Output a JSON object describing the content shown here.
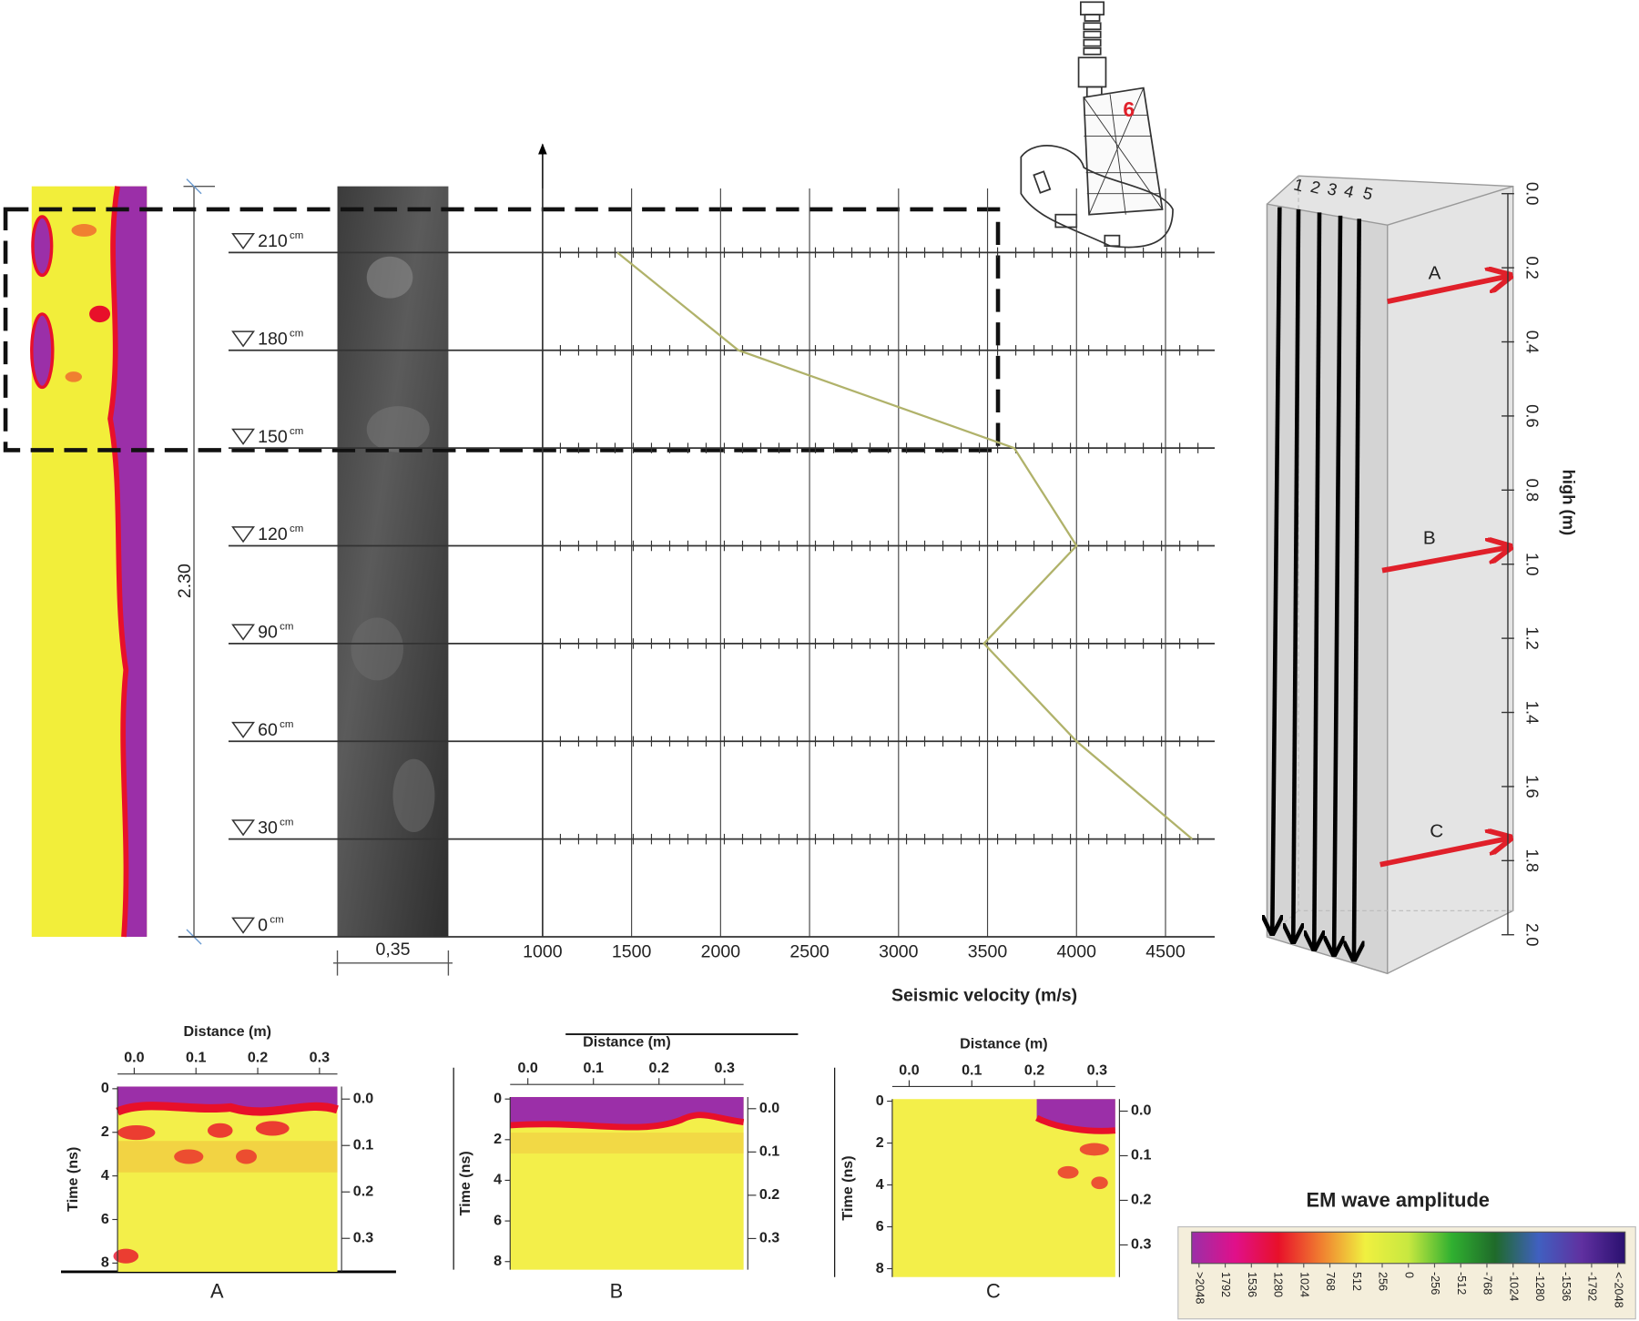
{
  "chart_data": {
    "type": "line",
    "x_label": "Seismic velocity (m/s)",
    "xlim": [
      1000,
      4800
    ],
    "xticks": [
      1000,
      1500,
      2000,
      2500,
      3000,
      3500,
      4000,
      4500
    ],
    "ylim": [
      0,
      230
    ],
    "yticks": [
      0,
      30,
      60,
      90,
      120,
      150,
      180,
      210
    ],
    "y_unit": "cm",
    "y": [
      210,
      180,
      150,
      120,
      90,
      60,
      30
    ],
    "values": [
      1420,
      2100,
      3650,
      4000,
      3480,
      4000,
      4650
    ],
    "color": "#b0b26a"
  },
  "dimensions": {
    "height": "2.30",
    "width": "0,35"
  },
  "top_diagram": {
    "label": "6"
  },
  "box_panel": {
    "line_labels": [
      "1",
      "2",
      "3",
      "4",
      "5"
    ],
    "arrow_labels": [
      "A",
      "B",
      "C"
    ],
    "axis_label": "high (m)",
    "ylim": [
      0,
      2
    ],
    "yticks": [
      {
        "value": 0,
        "label": "0.0"
      },
      0.2,
      0.4,
      0.6,
      0.8,
      {
        "value": 1,
        "label": "1.0"
      },
      1.2,
      1.4,
      1.6,
      1.8,
      {
        "value": 2,
        "label": "2.0"
      }
    ]
  },
  "radargrams": [
    {
      "caption": "A",
      "x_label": "Distance (m)",
      "y_label": "Time (ns)",
      "xlim": [
        -0.027,
        0.329
      ],
      "xticks": [
        {
          "value": 0,
          "label": "0.0"
        },
        0.1,
        0.2,
        0.3
      ],
      "ylim": [
        -0.1,
        8.4
      ],
      "yticks": [
        0,
        2,
        4,
        6,
        8
      ],
      "y2lim": [
        -0.027,
        0.372
      ],
      "y2ticks": [
        {
          "value": 0,
          "label": "0.0"
        },
        0.1,
        0.2,
        0.3
      ]
    },
    {
      "caption": "B",
      "x_label": "Distance (m)",
      "y_label": "Time (ns)",
      "xlim": [
        -0.027,
        0.329
      ],
      "xticks": [
        {
          "value": 0,
          "label": "0.0"
        },
        0.1,
        0.2,
        0.3
      ],
      "ylim": [
        -0.1,
        8.4
      ],
      "yticks": [
        0,
        2,
        4,
        6,
        8
      ],
      "y2lim": [
        -0.027,
        0.372
      ],
      "y2ticks": [
        {
          "value": 0,
          "label": "0.0"
        },
        0.1,
        0.2,
        0.3
      ]
    },
    {
      "caption": "C",
      "x_label": "Distance (m)",
      "y_label": "Time (ns)",
      "xlim": [
        -0.027,
        0.329
      ],
      "xticks": [
        {
          "value": 0,
          "label": "0.0"
        },
        0.1,
        0.2,
        0.3
      ],
      "ylim": [
        -0.1,
        8.4
      ],
      "yticks": [
        0,
        2,
        4,
        6,
        8
      ],
      "y2lim": [
        -0.027,
        0.372
      ],
      "y2ticks": [
        {
          "value": 0,
          "label": "0.0"
        },
        0.1,
        0.2,
        0.3
      ]
    }
  ],
  "colorbar": {
    "title": "EM wave amplitude",
    "lim": [
      2120,
      -2120
    ],
    "ticks": [
      {
        "value": 2048,
        "label": ">2048"
      },
      1792,
      1536,
      1280,
      1024,
      768,
      512,
      256,
      0,
      -256,
      -512,
      -768,
      -1024,
      -1280,
      -1536,
      -1792,
      {
        "value": -2048,
        "label": "<-2048"
      }
    ],
    "colors": [
      "#9b2fa8",
      "#e0108a",
      "#e8102a",
      "#f08030",
      "#f0f040",
      "#c8e840",
      "#30b030",
      "#1f6a2a",
      "#4060c0",
      "#6030a0",
      "#2a1070"
    ]
  }
}
